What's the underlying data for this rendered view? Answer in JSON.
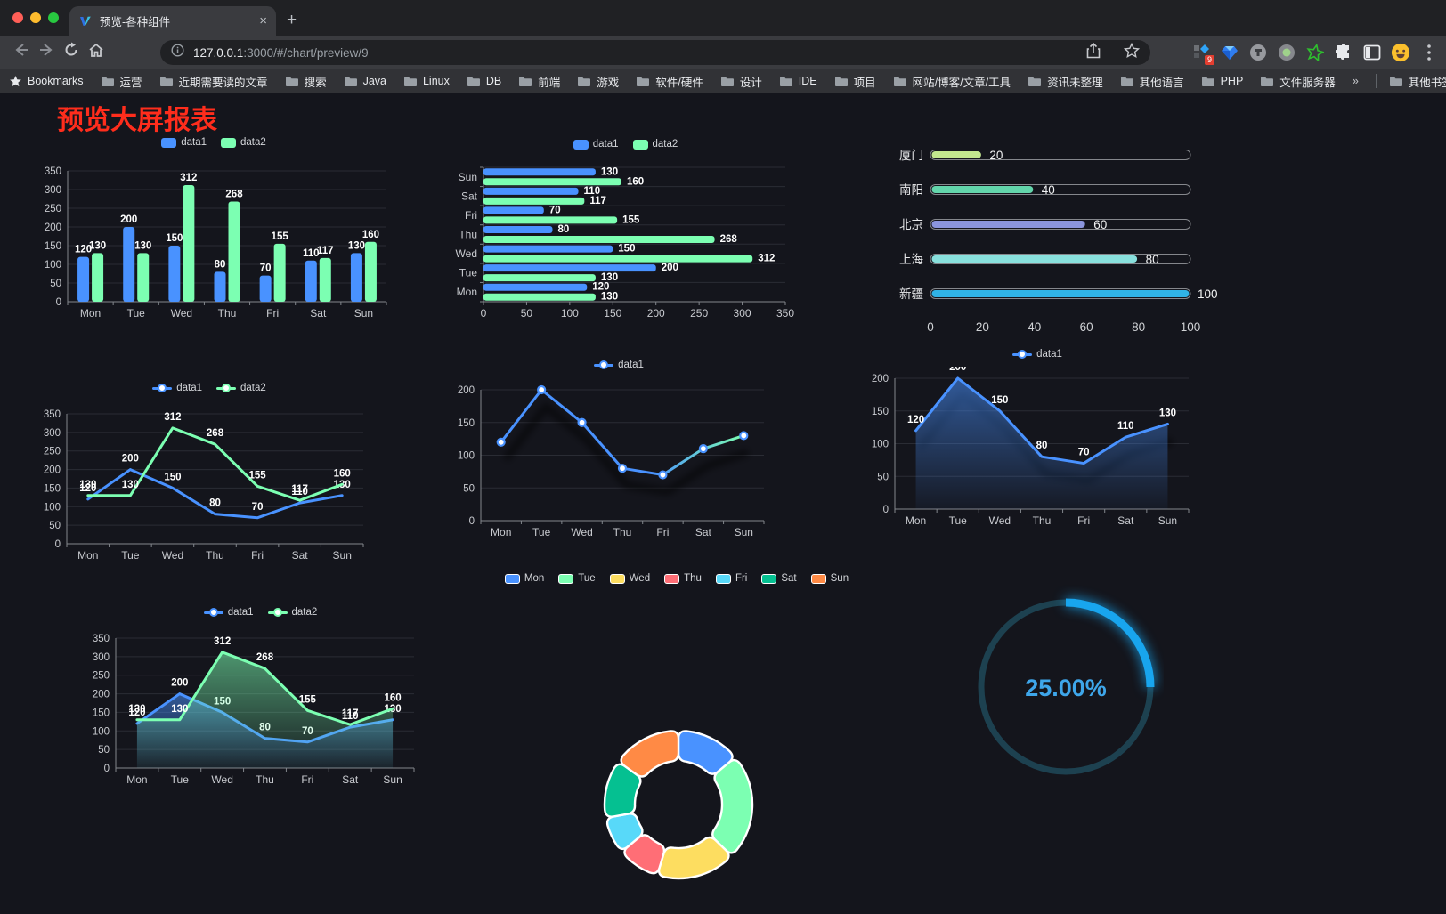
{
  "browser": {
    "tab": {
      "title": "预览-各种组件",
      "close": "×",
      "new_tab": "+"
    },
    "toolbar": {
      "url_host": "127.0.0.1",
      "url_rest": ":3000/#/chart/preview/9",
      "extension_badge": "9"
    },
    "bookmarks": {
      "label": "Bookmarks",
      "items": [
        "运营",
        "近期需要读的文章",
        "搜索",
        "Java",
        "Linux",
        "DB",
        "前端",
        "游戏",
        "软件/硬件",
        "设计",
        "IDE",
        "项目",
        "网站/博客/文章/工具",
        "资讯未整理",
        "其他语言",
        "PHP",
        "文件服务器"
      ],
      "overflow": "»",
      "other": "其他书签"
    }
  },
  "page": {
    "title": "预览大屏报表",
    "title_color": "#ff2d1c"
  },
  "colors": {
    "data1": "#4992ff",
    "data2": "#7cffb2",
    "axis_text": "#c9cbd0",
    "grid": "#2a2c34",
    "axis_line": "#83868c"
  },
  "chart_data": [
    {
      "type": "bar",
      "orientation": "vertical",
      "title": "",
      "categories": [
        "Mon",
        "Tue",
        "Wed",
        "Thu",
        "Fri",
        "Sat",
        "Sun"
      ],
      "series": [
        {
          "name": "data1",
          "color": "#4992ff",
          "values": [
            120,
            200,
            150,
            80,
            70,
            110,
            130
          ]
        },
        {
          "name": "data2",
          "color": "#7cffb2",
          "values": [
            130,
            130,
            312,
            268,
            155,
            117,
            160
          ]
        }
      ],
      "ylim": [
        0,
        350
      ],
      "ytick": 50,
      "grid": true,
      "legend_position": "top",
      "data_labels": true
    },
    {
      "type": "bar",
      "orientation": "horizontal",
      "title": "",
      "categories": [
        "Mon",
        "Tue",
        "Wed",
        "Thu",
        "Fri",
        "Sat",
        "Sun"
      ],
      "category_order": "bottom-to-top",
      "series": [
        {
          "name": "data1",
          "color": "#4992ff",
          "values": [
            120,
            200,
            150,
            80,
            70,
            110,
            130
          ]
        },
        {
          "name": "data2",
          "color": "#7cffb2",
          "values": [
            130,
            130,
            312,
            268,
            155,
            117,
            160
          ]
        }
      ],
      "xlim": [
        0,
        350
      ],
      "xtick": 50,
      "grid": true,
      "legend_position": "top",
      "data_labels": true
    },
    {
      "type": "bar",
      "subtype": "progress-capsules",
      "title": "",
      "items": [
        {
          "label": "厦门",
          "value": 20,
          "color": "#c3e78e"
        },
        {
          "label": "南阳",
          "value": 40,
          "color": "#63d5ab"
        },
        {
          "label": "北京",
          "value": 60,
          "color": "#8b95dd"
        },
        {
          "label": "上海",
          "value": 80,
          "color": "#88e0dd"
        },
        {
          "label": "新疆",
          "value": 100,
          "color": "#30b3e6"
        }
      ],
      "xlim": [
        0,
        100
      ],
      "xticks": [
        0,
        20,
        40,
        60,
        80,
        100
      ],
      "data_labels": true
    },
    {
      "type": "line",
      "title": "",
      "categories": [
        "Mon",
        "Tue",
        "Wed",
        "Thu",
        "Fri",
        "Sat",
        "Sun"
      ],
      "series": [
        {
          "name": "data1",
          "color": "#4992ff",
          "values": [
            120,
            200,
            150,
            80,
            70,
            110,
            130
          ]
        },
        {
          "name": "data2",
          "color": "#7cffb2",
          "values": [
            130,
            130,
            312,
            268,
            155,
            117,
            160
          ]
        }
      ],
      "ylim": [
        0,
        350
      ],
      "ytick": 50,
      "grid": true,
      "legend_position": "top",
      "data_labels": true,
      "markers": true
    },
    {
      "type": "line",
      "subtype": "gradient-line-with-shadow",
      "title": "",
      "categories": [
        "Mon",
        "Tue",
        "Wed",
        "Thu",
        "Fri",
        "Sat",
        "Sun"
      ],
      "series": [
        {
          "name": "data1",
          "color": "#4992ff",
          "color_end": "#7cffb2",
          "values": [
            120,
            200,
            150,
            80,
            70,
            110,
            130
          ]
        }
      ],
      "ylim": [
        0,
        200
      ],
      "ytick": 50,
      "grid": true,
      "legend_position": "top",
      "data_labels": false,
      "markers": true
    },
    {
      "type": "area",
      "title": "",
      "categories": [
        "Mon",
        "Tue",
        "Wed",
        "Thu",
        "Fri",
        "Sat",
        "Sun"
      ],
      "series": [
        {
          "name": "data1",
          "color": "#4992ff",
          "values": [
            120,
            200,
            150,
            80,
            70,
            110,
            130
          ]
        }
      ],
      "ylim": [
        0,
        200
      ],
      "ytick": 50,
      "grid": true,
      "legend_position": "top",
      "data_labels": true,
      "markers": true
    },
    {
      "type": "area",
      "title": "",
      "categories": [
        "Mon",
        "Tue",
        "Wed",
        "Thu",
        "Fri",
        "Sat",
        "Sun"
      ],
      "series": [
        {
          "name": "data1",
          "color": "#4992ff",
          "values": [
            120,
            200,
            150,
            80,
            70,
            110,
            130
          ]
        },
        {
          "name": "data2",
          "color": "#7cffb2",
          "values": [
            130,
            130,
            312,
            268,
            155,
            117,
            160
          ]
        }
      ],
      "ylim": [
        0,
        350
      ],
      "ytick": 50,
      "grid": true,
      "legend_position": "top",
      "data_labels": true,
      "markers": true
    },
    {
      "type": "pie",
      "subtype": "donut-rounded",
      "title": "",
      "legend_position": "top",
      "items": [
        {
          "label": "Mon",
          "value": 120,
          "color": "#4992ff"
        },
        {
          "label": "Tue",
          "value": 200,
          "color": "#7cffb2"
        },
        {
          "label": "Wed",
          "value": 150,
          "color": "#fddd60"
        },
        {
          "label": "Thu",
          "value": 80,
          "color": "#ff6e76"
        },
        {
          "label": "Fri",
          "value": 70,
          "color": "#58d9f9"
        },
        {
          "label": "Sat",
          "value": 110,
          "color": "#05c091"
        },
        {
          "label": "Sun",
          "value": 130,
          "color": "#ff8a45"
        }
      ]
    },
    {
      "type": "pie",
      "subtype": "gauge-ring",
      "title": "",
      "percent": 25,
      "label": "25.00%",
      "color": "#18a5ee",
      "track_color": "#1d4150",
      "text_color": "#3ea6ea"
    }
  ]
}
